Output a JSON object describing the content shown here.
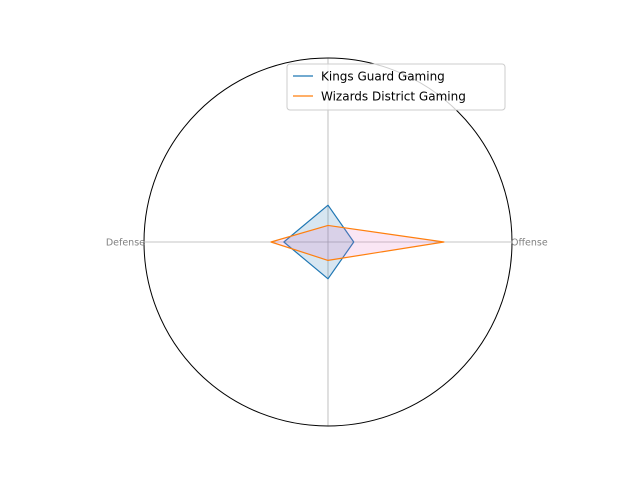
{
  "chart_data": {
    "type": "radar",
    "axes": [
      "Offense",
      "",
      "Defense",
      ""
    ],
    "rmax": 1.0,
    "grid": true,
    "legend_position": "upper-right",
    "series": [
      {
        "name": "Kings Guard Gaming",
        "values": [
          0.14,
          0.2,
          0.24,
          0.2
        ],
        "color": "#1f77b4",
        "fill": "#1f77b4"
      },
      {
        "name": "Wizards District Gaming",
        "values": [
          0.63,
          0.09,
          0.31,
          0.1
        ],
        "color": "#ff7f0e",
        "fill": "#e377c2"
      }
    ]
  }
}
